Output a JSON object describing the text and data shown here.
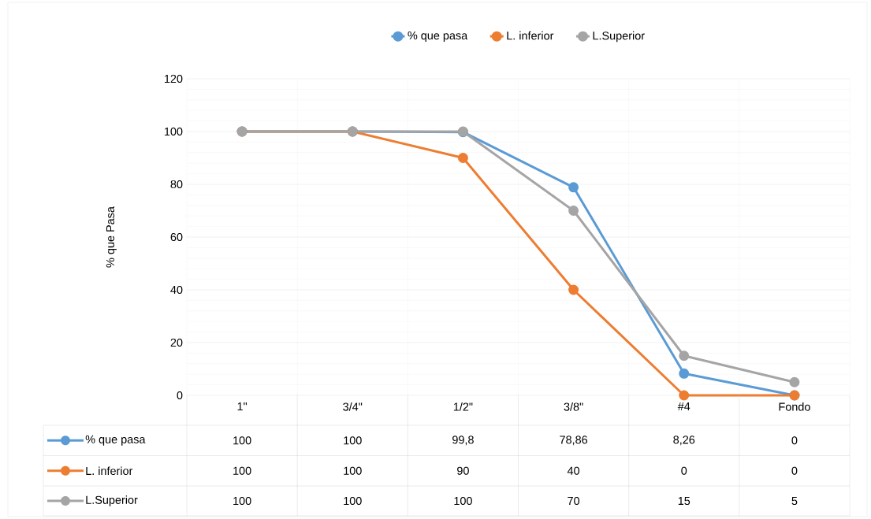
{
  "chart_data": {
    "type": "line",
    "ylabel": "% que Pasa",
    "categories": [
      "1\"",
      "3/4\"",
      "1/2\"",
      "3/8\"",
      "#4",
      "Fondo"
    ],
    "series": [
      {
        "name": "% que pasa",
        "color": "#5b9bd5",
        "values": [
          100,
          100,
          99.8,
          78.86,
          8.26,
          0
        ],
        "value_labels": [
          "100",
          "100",
          "99,8",
          "78,86",
          "8,26",
          "0"
        ]
      },
      {
        "name": "L. inferior",
        "color": "#ed7d31",
        "values": [
          100,
          100,
          90,
          40,
          0,
          0
        ],
        "value_labels": [
          "100",
          "100",
          "90",
          "40",
          "0",
          "0"
        ]
      },
      {
        "name": "L.Superior",
        "color": "#a5a5a5",
        "values": [
          100,
          100,
          100,
          70,
          15,
          5
        ],
        "value_labels": [
          "100",
          "100",
          "100",
          "70",
          "15",
          "5"
        ]
      }
    ],
    "ylim": [
      0,
      120
    ],
    "yticks": [
      0,
      20,
      40,
      60,
      80,
      100,
      120
    ],
    "grid": true,
    "legend": "top",
    "marker": "circle"
  }
}
